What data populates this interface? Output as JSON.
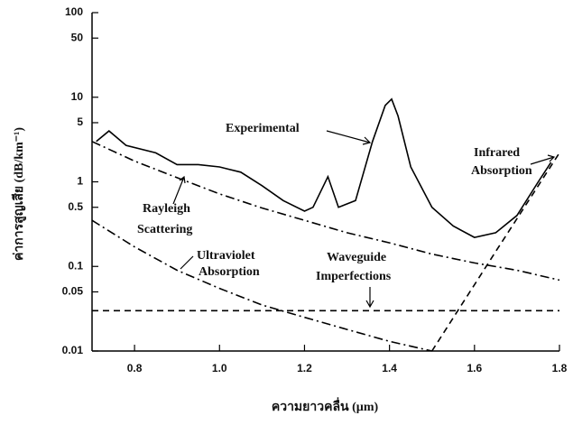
{
  "chart_data": {
    "type": "line",
    "x_label": "ความยาวคลื่น (µm)",
    "y_label": "ค่าการสูญเสีย (dB/km⁻¹)",
    "log_y": true,
    "xlim": [
      0.7,
      1.8
    ],
    "xticks": [
      0.8,
      {
        "value": 1,
        "label": "1.0"
      },
      1.2,
      1.4,
      1.6,
      1.8
    ],
    "ylim": [
      0.01,
      100
    ],
    "yticks": [
      0.01,
      0.05,
      0.1,
      0.5,
      1,
      5,
      10,
      50,
      100
    ],
    "series": [
      {
        "label": [
          "Experimental"
        ],
        "color": "#000000",
        "style": "solid",
        "x": [
          0.71,
          0.74,
          0.78,
          0.85,
          0.9,
          0.95,
          1.0,
          1.05,
          1.1,
          1.15,
          1.2,
          1.22,
          1.255,
          1.28,
          1.32,
          1.36,
          1.39,
          1.405,
          1.42,
          1.45,
          1.5,
          1.55,
          1.6,
          1.65,
          1.7,
          1.75,
          1.78
        ],
        "values": [
          3,
          4,
          2.7,
          2.2,
          1.6,
          1.6,
          1.5,
          1.3,
          0.9,
          0.6,
          0.45,
          0.5,
          1.15,
          0.5,
          0.6,
          3,
          8,
          9.5,
          6,
          1.5,
          0.5,
          0.3,
          0.22,
          0.25,
          0.4,
          1,
          1.7
        ]
      },
      {
        "label": [
          "Rayleigh",
          "Scattering"
        ],
        "color": "#000000",
        "style": "dashdot",
        "x": [
          0.7,
          0.8,
          0.9,
          1.0,
          1.1,
          1.2,
          1.3,
          1.4,
          1.5,
          1.6,
          1.7,
          1.8
        ],
        "values": [
          3,
          1.76,
          1.12,
          0.72,
          0.49,
          0.35,
          0.25,
          0.19,
          0.14,
          0.11,
          0.09,
          0.069
        ]
      },
      {
        "label": [
          "Ultraviolet",
          "Absorption"
        ],
        "color": "#000000",
        "style": "dashdot",
        "x": [
          0.7,
          0.8,
          0.9,
          1.0,
          1.1,
          1.2,
          1.3,
          1.4,
          1.5
        ],
        "values": [
          0.35,
          0.17,
          0.09,
          0.055,
          0.035,
          0.025,
          0.018,
          0.013,
          0.01
        ]
      },
      {
        "label": [
          "Waveguide",
          "Imperfections"
        ],
        "color": "#000000",
        "style": "dashed",
        "x": [
          0.7,
          1.8
        ],
        "values": [
          0.03,
          0.03
        ]
      },
      {
        "label": [
          "Infrared",
          "Absorption"
        ],
        "color": "#000000",
        "style": "dashed",
        "x": [
          1.5,
          1.65,
          1.8
        ],
        "values": [
          0.01,
          0.15,
          2.2
        ]
      }
    ]
  }
}
